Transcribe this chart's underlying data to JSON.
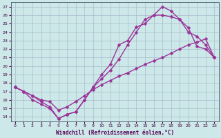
{
  "xlabel": "Windchill (Refroidissement éolien,°C)",
  "xlim": [
    -0.5,
    23.5
  ],
  "ylim": [
    13.5,
    27.5
  ],
  "yticks": [
    14,
    15,
    16,
    17,
    18,
    19,
    20,
    21,
    22,
    23,
    24,
    25,
    26,
    27
  ],
  "xticks": [
    0,
    1,
    2,
    3,
    4,
    5,
    6,
    7,
    8,
    9,
    10,
    11,
    12,
    13,
    14,
    15,
    16,
    17,
    18,
    19,
    20,
    21,
    22,
    23
  ],
  "bg_color": "#cce8e8",
  "grid_color": "#aabbcc",
  "line_color": "#993399",
  "line1_y": [
    17.5,
    17.0,
    16.5,
    15.8,
    15.2,
    13.8,
    14.3,
    14.6,
    16.0,
    17.5,
    19.0,
    20.2,
    22.5,
    23.0,
    24.6,
    25.0,
    26.0,
    27.0,
    26.5,
    25.5,
    24.5,
    22.3,
    22.0,
    21.0
  ],
  "line2_y": [
    17.5,
    17.0,
    16.0,
    15.5,
    15.0,
    13.8,
    14.3,
    14.6,
    16.0,
    17.5,
    18.5,
    19.5,
    20.8,
    22.5,
    24.0,
    25.5,
    26.0,
    26.0,
    25.8,
    25.5,
    24.0,
    23.5,
    22.5,
    21.0
  ],
  "line3_y": [
    17.5,
    17.0,
    16.5,
    16.0,
    15.8,
    14.8,
    15.2,
    15.8,
    16.5,
    17.2,
    17.8,
    18.3,
    18.8,
    19.2,
    19.7,
    20.2,
    20.6,
    21.0,
    21.5,
    22.0,
    22.5,
    22.8,
    23.2,
    21.0
  ],
  "marker": "D",
  "markersize": 2.5,
  "linewidth": 1.0
}
